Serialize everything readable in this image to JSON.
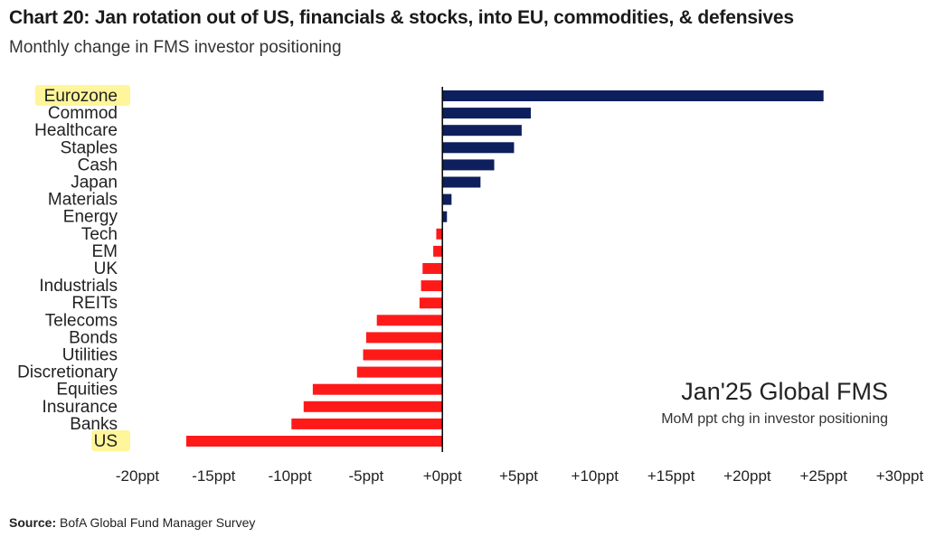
{
  "header": {
    "title": "Chart 20: Jan rotation out of US, financials & stocks, into EU, commodities, & defensives",
    "subtitle": "Monthly change in FMS investor positioning"
  },
  "annotation": {
    "main": "Jan'25 Global FMS",
    "sub": "MoM ppt chg in investor positioning"
  },
  "source": {
    "label": "Source:",
    "text": "BofA Global Fund Manager Survey"
  },
  "colors": {
    "positive": "#0d1f5c",
    "negative": "#ff1a1a",
    "highlight": "#fff59a",
    "axis": "#000000"
  },
  "chart_data": {
    "type": "bar",
    "orientation": "horizontal",
    "categories": [
      "Eurozone",
      "Commod",
      "Healthcare",
      "Staples",
      "Cash",
      "Japan",
      "Materials",
      "Energy",
      "Tech",
      "EM",
      "UK",
      "Industrials",
      "REITs",
      "Telecoms",
      "Bonds",
      "Utilities",
      "Discretionary",
      "Equities",
      "Insurance",
      "Banks",
      "US"
    ],
    "values": [
      25,
      5.8,
      5.2,
      4.7,
      3.4,
      2.5,
      0.6,
      0.3,
      -0.4,
      -0.6,
      -1.3,
      -1.4,
      -1.5,
      -4.3,
      -5,
      -5.2,
      -5.6,
      -8.5,
      -9.1,
      -9.9,
      -16.8
    ],
    "highlighted": [
      "Eurozone",
      "US"
    ],
    "xlim": [
      -20,
      30
    ],
    "xticks": [
      -20,
      -15,
      -10,
      -5,
      0,
      5,
      10,
      15,
      20,
      25,
      30
    ],
    "xtick_labels": [
      "-20ppt",
      "-15ppt",
      "-10ppt",
      "-5ppt",
      "+0ppt",
      "+5ppt",
      "+10ppt",
      "+15ppt",
      "+20ppt",
      "+25ppt",
      "+30ppt"
    ],
    "grid": false,
    "legend": "none"
  }
}
